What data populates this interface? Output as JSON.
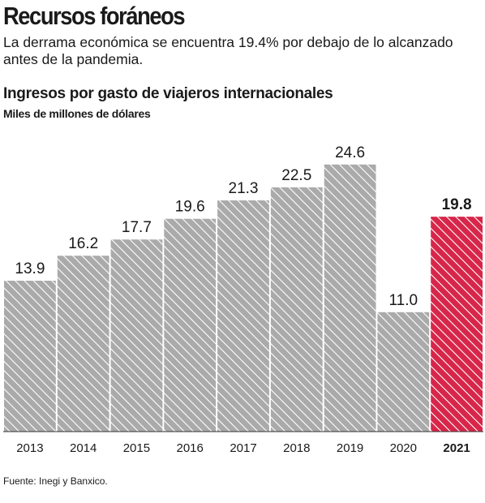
{
  "headline": "Recursos foráneos",
  "dek": "La derrama económica se encuentra 19.4% por debajo de lo alcanzado antes de la pandemia.",
  "source": "Fuente: Inegi y Banxico.",
  "colors": {
    "bar": "#aaaaaa",
    "bar_hatch": "#ffffff",
    "highlight": "#d7264a",
    "text": "#1a1a1a",
    "axis": "#333333"
  },
  "chart_data": {
    "type": "bar",
    "title": "Ingresos por gasto de viajeros internacionales",
    "subtitle": "Miles de millones de dólares",
    "categories": [
      "2013",
      "2014",
      "2015",
      "2016",
      "2017",
      "2018",
      "2019",
      "2020",
      "2021"
    ],
    "values": [
      13.9,
      16.2,
      17.7,
      19.6,
      21.3,
      22.5,
      24.6,
      11.0,
      19.8
    ],
    "value_labels": [
      "13.9",
      "16.2",
      "17.7",
      "19.6",
      "21.3",
      "22.5",
      "24.6",
      "11.0",
      "19.8"
    ],
    "highlight_category": "2021",
    "ylim": [
      0,
      28.4
    ],
    "grid": false,
    "legend": "none",
    "bar_fill": "diagonal-hatch"
  }
}
